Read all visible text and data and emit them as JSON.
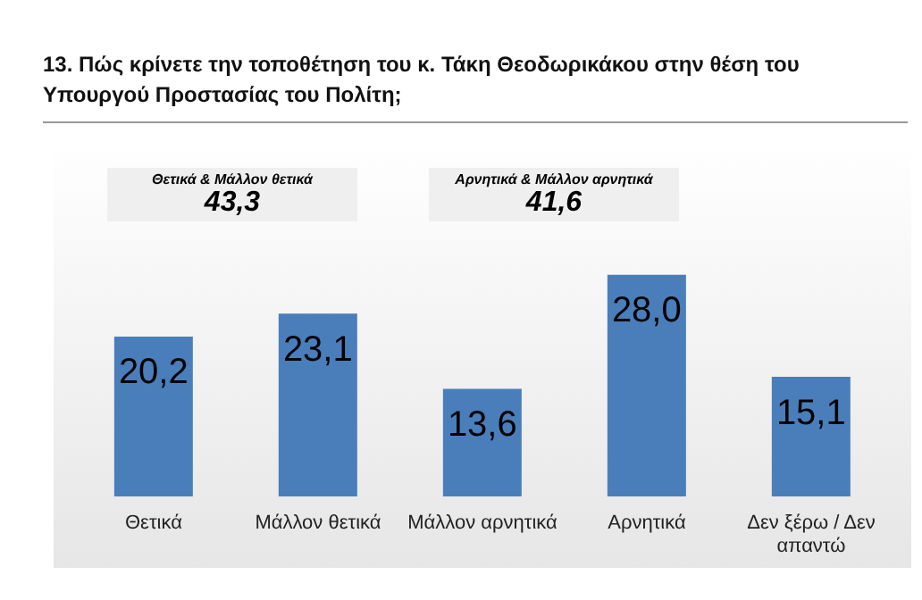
{
  "chart_data": {
    "type": "bar",
    "title": "13. Πώς κρίνετε την τοποθέτηση του κ. Τάκη Θεοδωρικάκου στην θέση του Υπουργού Προστασίας του Πολίτη;",
    "categories": [
      "Θετικά",
      "Μάλλον θετικά",
      "Μάλλον αρνητικά",
      "Αρνητικά",
      "Δεν ξέρω / Δεν απαντώ"
    ],
    "values": [
      20.2,
      23.1,
      13.6,
      28.0,
      15.1
    ],
    "value_labels": [
      "20,2",
      "23,1",
      "13,6",
      "28,0",
      "15,1"
    ],
    "color": "#4a7ebb",
    "annotations": [
      "Θετικά & Μάλλον θετικά",
      "43,3",
      "Αρνητικά & Μάλλον αρνητικά",
      "41,6"
    ]
  }
}
